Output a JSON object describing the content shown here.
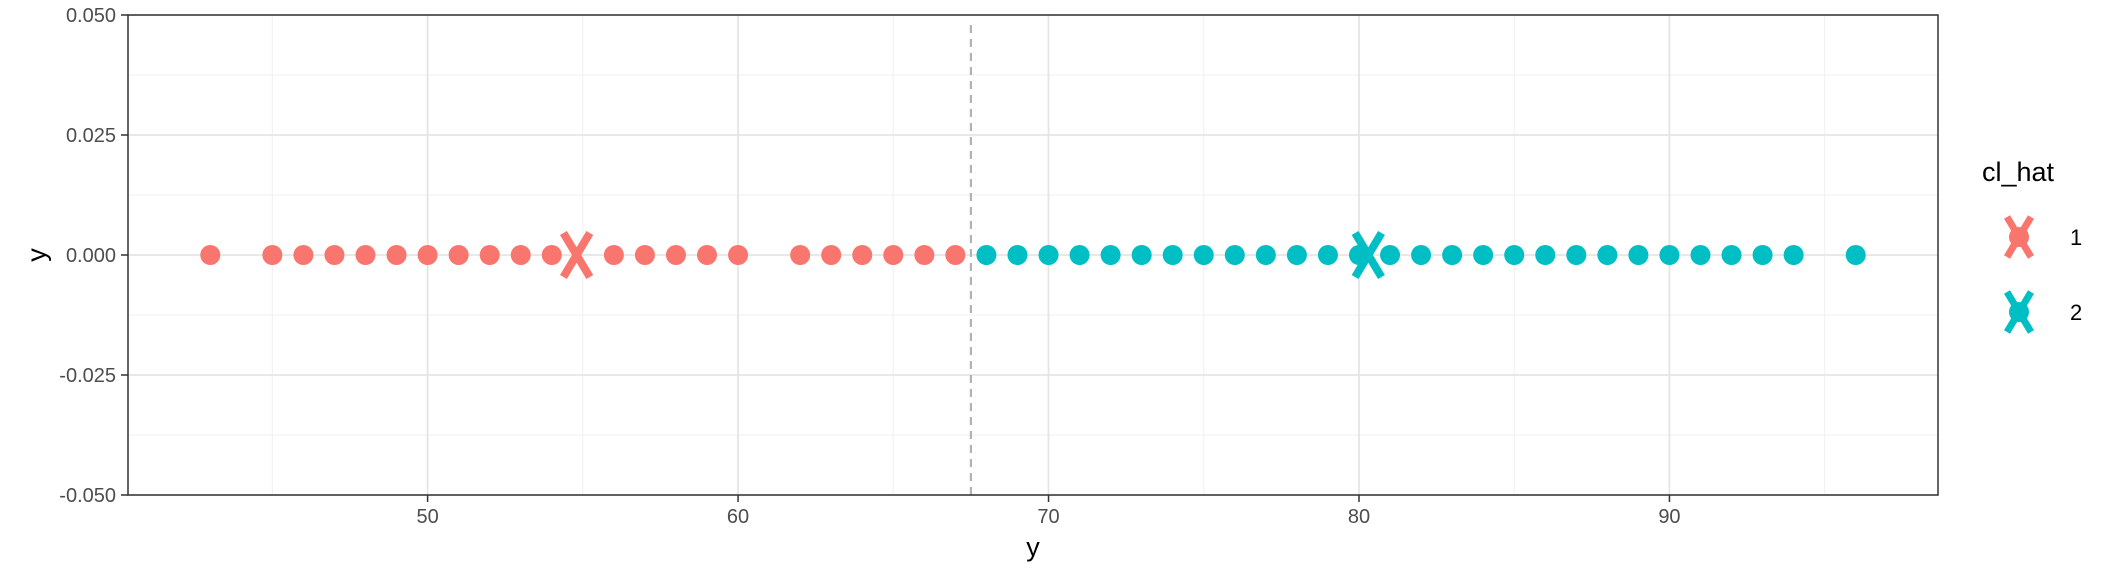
{
  "chart_data": {
    "type": "scatter",
    "xlabel": "y",
    "ylabel": "y",
    "xlim": [
      40.35,
      98.65
    ],
    "ylim": [
      -0.05,
      0.05
    ],
    "x_ticks": [
      50,
      60,
      70,
      80,
      90
    ],
    "x_tick_labels": [
      "50",
      "60",
      "70",
      "80",
      "90"
    ],
    "y_ticks": [
      -0.05,
      -0.025,
      0,
      0.025,
      0.05
    ],
    "y_tick_labels": [
      "-0.050",
      "-0.025",
      "0.000",
      "0.025",
      "0.050"
    ],
    "grid": true,
    "threshold_line": {
      "x": 67.5,
      "style": "dashed",
      "color": "#b3b3b3"
    },
    "legend": {
      "title": "cl_hat",
      "position": "right",
      "entries": [
        {
          "label": "1",
          "color": "#F8766D"
        },
        {
          "label": "2",
          "color": "#00BFC4"
        }
      ]
    },
    "series": [
      {
        "label": "1",
        "color": "#F8766D",
        "x": [
          43,
          45,
          46,
          47,
          48,
          49,
          50,
          51,
          52,
          53,
          54,
          56,
          57,
          58,
          59,
          60,
          62,
          63,
          64,
          65,
          66,
          67
        ],
        "y": [
          0,
          0,
          0,
          0,
          0,
          0,
          0,
          0,
          0,
          0,
          0,
          0,
          0,
          0,
          0,
          0,
          0,
          0,
          0,
          0,
          0,
          0
        ],
        "centroid": {
          "x": 54.8,
          "y": 0
        }
      },
      {
        "label": "2",
        "color": "#00BFC4",
        "x": [
          68,
          69,
          70,
          71,
          72,
          73,
          74,
          75,
          76,
          77,
          78,
          79,
          80,
          81,
          82,
          83,
          84,
          85,
          86,
          87,
          88,
          89,
          90,
          91,
          92,
          93,
          94,
          96
        ],
        "y": [
          0,
          0,
          0,
          0,
          0,
          0,
          0,
          0,
          0,
          0,
          0,
          0,
          0,
          0,
          0,
          0,
          0,
          0,
          0,
          0,
          0,
          0,
          0,
          0,
          0,
          0,
          0,
          0
        ],
        "centroid": {
          "x": 80.3,
          "y": 0
        }
      }
    ]
  }
}
